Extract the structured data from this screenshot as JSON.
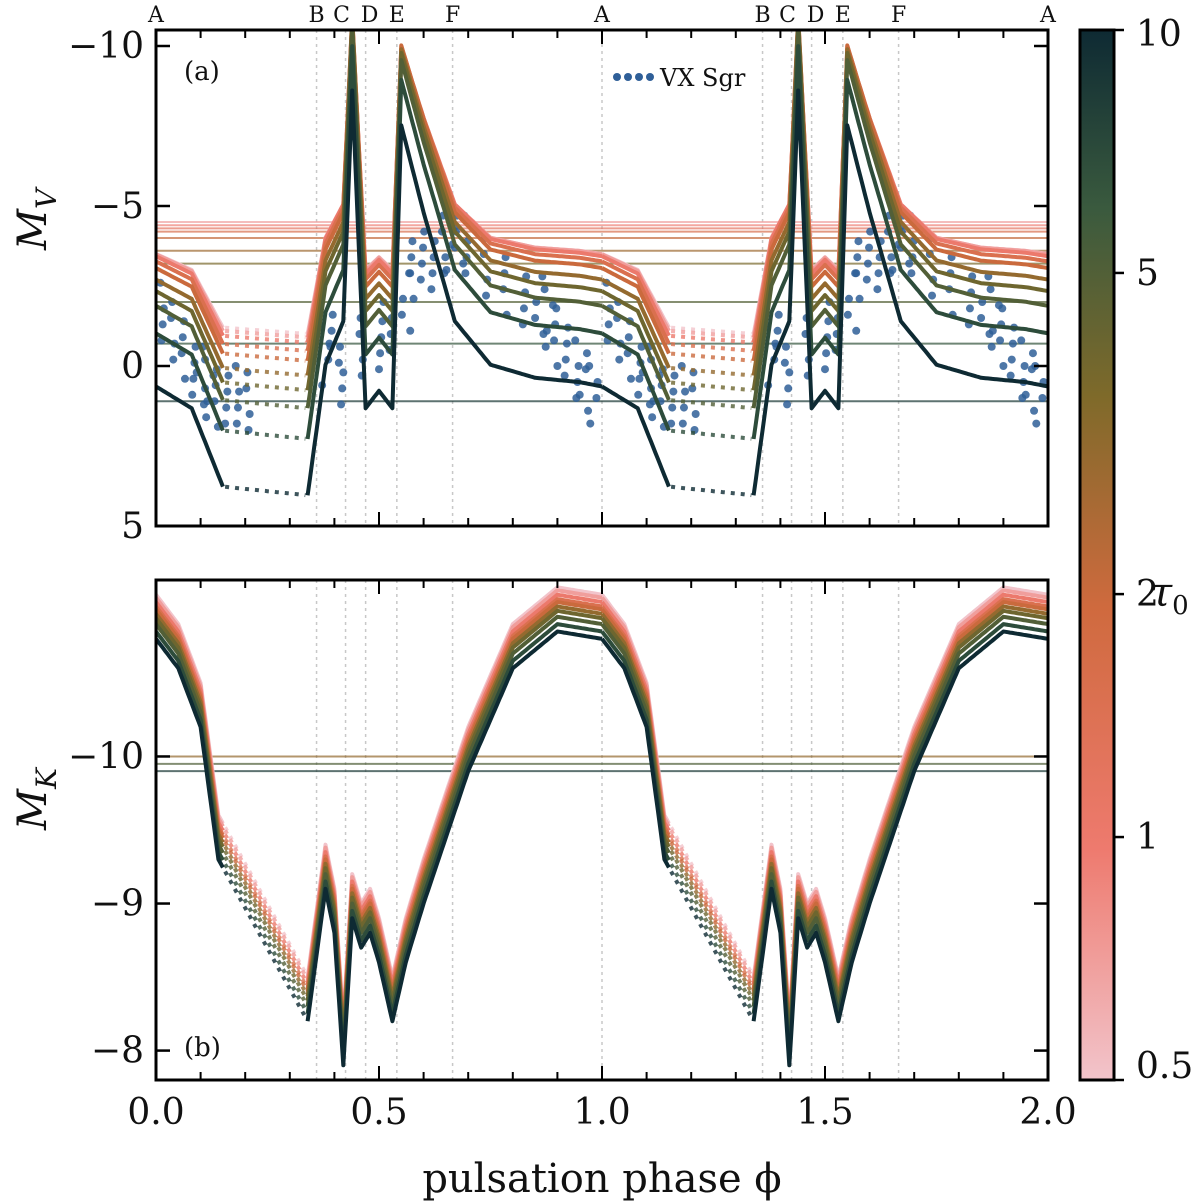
{
  "chart_data": [
    {
      "panel": "(a)",
      "type": "line",
      "ylabel": "M_V",
      "ylabel_main": "M",
      "ylabel_sub": "V",
      "xlim": [
        0.0,
        2.0
      ],
      "ylim": [
        5,
        -10.5
      ],
      "y_inverted": true,
      "yticks": [
        -10,
        -5,
        0,
        5
      ],
      "ytick_labels": [
        "−10",
        "−5",
        "0",
        "5"
      ],
      "legend": {
        "label": "VX Sgr",
        "placement": "top-center"
      },
      "phase_markers": [
        {
          "label": "A",
          "phase": 0.0
        },
        {
          "label": "B",
          "phase": 0.36
        },
        {
          "label": "C",
          "phase": 0.425
        },
        {
          "label": "D",
          "phase": 0.47
        },
        {
          "label": "E",
          "phase": 0.54
        },
        {
          "label": "F",
          "phase": 0.665
        },
        {
          "label": "A",
          "phase": 1.0
        },
        {
          "label": "B",
          "phase": 1.36
        },
        {
          "label": "C",
          "phase": 1.425
        },
        {
          "label": "D",
          "phase": 1.47
        },
        {
          "label": "E",
          "phase": 1.54
        },
        {
          "label": "F",
          "phase": 1.665
        },
        {
          "label": "A",
          "phase": 2.0
        }
      ],
      "reference": {
        "phase": [
          0.0,
          0.08,
          0.15,
          0.34,
          0.38,
          0.42,
          0.44,
          0.47,
          0.5,
          0.53,
          0.55,
          0.6,
          0.67,
          0.75,
          0.85,
          0.95,
          1.0
        ],
        "mag": [
          -3.5,
          -3.0,
          -1.2,
          -1.0,
          -4.0,
          -5.0,
          -10.3,
          -3.0,
          -3.4,
          -3.0,
          -9.5,
          -7.5,
          -5.0,
          -4.0,
          -3.7,
          -3.6,
          -3.5
        ]
      },
      "tau_series": [
        {
          "tau0": 0.5,
          "offset": 0.0
        },
        {
          "tau0": 0.7,
          "offset": 0.15
        },
        {
          "tau0": 1.0,
          "offset": 0.35
        },
        {
          "tau0": 1.5,
          "offset": 0.65
        },
        {
          "tau0": 2.0,
          "offset": 1.0
        },
        {
          "tau0": 3.0,
          "offset": 1.5
        },
        {
          "tau0": 4.0,
          "offset": 2.0
        },
        {
          "tau0": 5.0,
          "offset": 2.6
        },
        {
          "tau0": 7.0,
          "offset": 3.6
        },
        {
          "tau0": 10.0,
          "offset": 5.4
        }
      ],
      "mean_levels": [
        -4.5,
        -4.4,
        -4.3,
        -4.2,
        -4.0,
        -3.6,
        -3.2,
        -2.0,
        -0.7,
        1.1
      ],
      "observations": {
        "name": "VX Sgr",
        "phase": [
          0.02,
          0.04,
          0.06,
          0.08,
          0.1,
          0.12,
          0.14,
          0.16,
          0.18,
          0.2,
          0.38,
          0.4,
          0.42,
          0.46,
          0.5,
          0.52,
          0.56,
          0.58,
          0.6,
          0.62,
          0.64,
          0.66,
          0.68,
          0.7,
          0.74,
          0.78,
          0.82,
          0.86,
          0.88,
          0.9,
          0.92,
          0.94,
          0.96,
          0.98
        ],
        "mag": [
          -1.5,
          -1.0,
          -0.5,
          0.2,
          0.4,
          0.7,
          0.9,
          1.0,
          0.9,
          1.0,
          -0.5,
          -1.0,
          0.2,
          -0.8,
          -0.3,
          -1.5,
          -2.2,
          -2.8,
          -3.2,
          -3.5,
          -3.6,
          -3.8,
          -3.8,
          -3.6,
          -3.0,
          -2.5,
          -2.0,
          -1.8,
          -1.5,
          -1.0,
          -0.5,
          0.1,
          0.4,
          0.7
        ]
      }
    },
    {
      "panel": "(b)",
      "type": "line",
      "ylabel": "M_K",
      "ylabel_main": "M",
      "ylabel_sub": "K",
      "xlim": [
        0.0,
        2.0
      ],
      "ylim": [
        -7.8,
        -11.2
      ],
      "y_inverted": true,
      "yticks": [
        -10,
        -9,
        -8
      ],
      "ytick_labels": [
        "−10",
        "−9",
        "−8"
      ],
      "reference": {
        "phase": [
          0.0,
          0.05,
          0.1,
          0.14,
          0.34,
          0.38,
          0.4,
          0.42,
          0.44,
          0.46,
          0.48,
          0.5,
          0.53,
          0.56,
          0.6,
          0.7,
          0.8,
          0.9,
          1.0
        ],
        "mag": [
          -11.1,
          -10.9,
          -10.5,
          -9.6,
          -8.5,
          -9.4,
          -9.1,
          -8.2,
          -9.2,
          -9.0,
          -9.1,
          -8.9,
          -8.5,
          -8.9,
          -9.3,
          -10.2,
          -10.9,
          -11.15,
          -11.1
        ]
      },
      "tau_series": [
        {
          "tau0": 0.5,
          "offset": 0.0
        },
        {
          "tau0": 0.7,
          "offset": 0.02
        },
        {
          "tau0": 1.0,
          "offset": 0.05
        },
        {
          "tau0": 1.5,
          "offset": 0.08
        },
        {
          "tau0": 2.0,
          "offset": 0.1
        },
        {
          "tau0": 3.0,
          "offset": 0.13
        },
        {
          "tau0": 4.0,
          "offset": 0.16
        },
        {
          "tau0": 5.0,
          "offset": 0.2
        },
        {
          "tau0": 7.0,
          "offset": 0.25
        },
        {
          "tau0": 10.0,
          "offset": 0.3
        }
      ],
      "mean_levels": [
        -10.0,
        -9.95,
        -9.9
      ]
    }
  ],
  "x_axis": {
    "label": "pulsation phase ϕ",
    "ticks": [
      0.0,
      0.5,
      1.0,
      1.5,
      2.0
    ],
    "tick_labels": [
      "0.0",
      "0.5",
      "1.0",
      "1.5",
      "2.0"
    ]
  },
  "colorbar": {
    "label": "τ",
    "label_sub": "0",
    "scale": "log",
    "range": [
      0.5,
      10
    ],
    "ticks": [
      0.5,
      1,
      2,
      5,
      10
    ],
    "tick_labels": [
      "0.5",
      "1",
      "2",
      "5",
      "10"
    ],
    "colors": [
      "#f2c4cb",
      "#ee7a6e",
      "#cf6a3e",
      "#7f6a2a",
      "#3a5a3e",
      "#0e2a33"
    ]
  }
}
